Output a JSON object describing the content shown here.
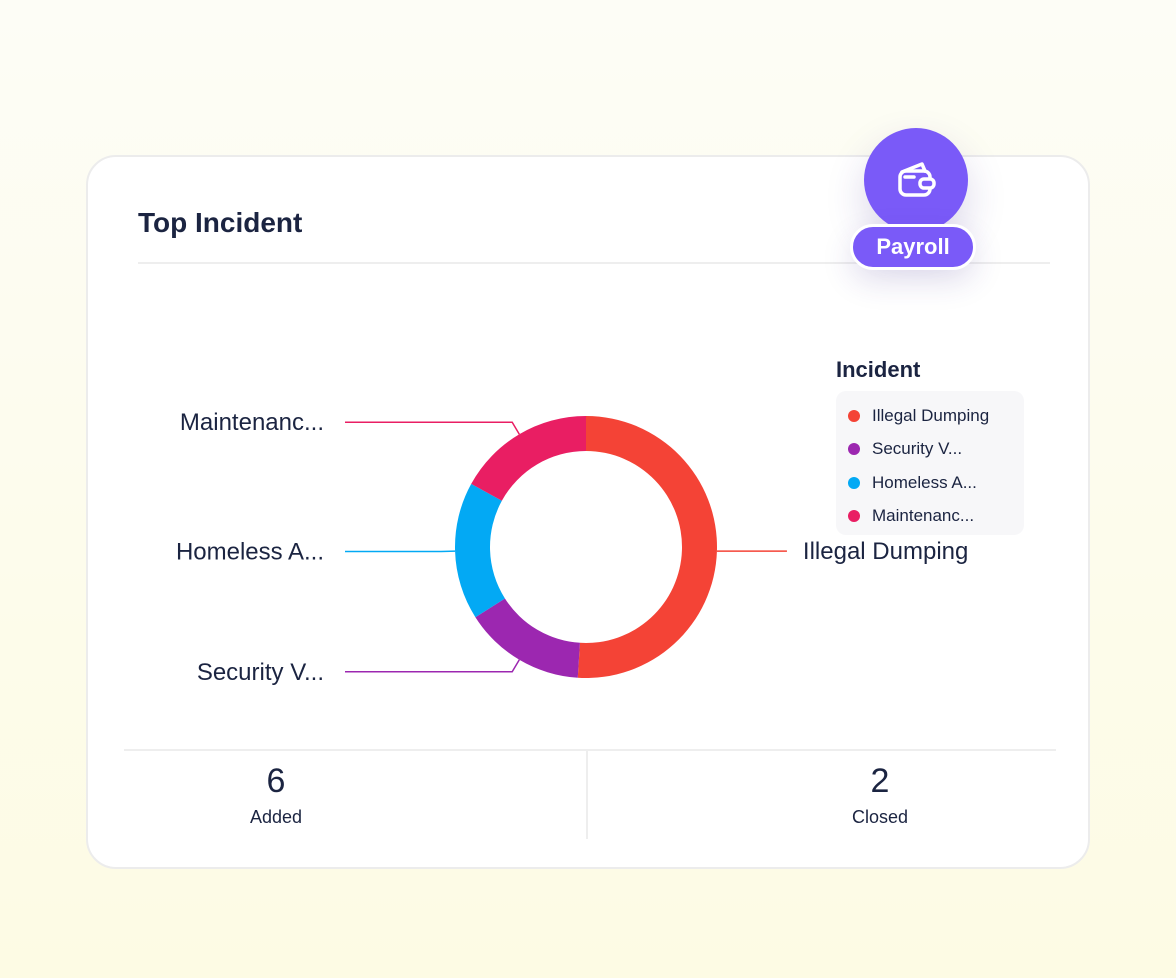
{
  "card": {
    "title": "Top Incident"
  },
  "badge": {
    "label": "Payroll",
    "icon": "wallet-icon",
    "color": "#7a5af8"
  },
  "legend": {
    "title": "Incident",
    "items": [
      {
        "label": "Illegal Dumping",
        "color": "#f44336"
      },
      {
        "label": "Security V...",
        "color": "#9c27b0"
      },
      {
        "label": "Homeless A...",
        "color": "#03a9f4"
      },
      {
        "label": "Maintenanc...",
        "color": "#e91e63"
      }
    ]
  },
  "chart_data": {
    "type": "pie",
    "title": "Top Incident",
    "legend_title": "Incident",
    "legend_position": "right",
    "categories": [
      "Illegal Dumping",
      "Security V...",
      "Homeless A...",
      "Maintenanc..."
    ],
    "values": [
      51,
      15,
      17,
      17
    ],
    "colors": [
      "#f44336",
      "#9c27b0",
      "#03a9f4",
      "#e91e63"
    ],
    "slice_labels": [
      "Illegal Dumping",
      "Security V...",
      "Homeless A...",
      "Maintenanc..."
    ]
  },
  "stats": {
    "added": {
      "value": "6",
      "label": "Added"
    },
    "closed": {
      "value": "2",
      "label": "Closed"
    }
  }
}
